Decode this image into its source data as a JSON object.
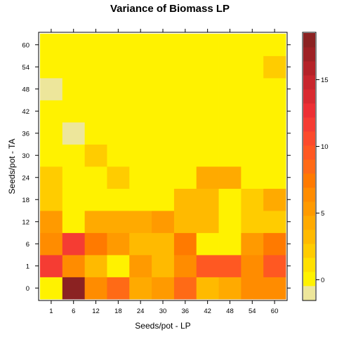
{
  "chart_data": {
    "type": "heatmap",
    "title": "Variance of Biomass LP",
    "xlabel": "Seeds/pot - LP",
    "ylabel": "Seeds/pot - TA",
    "x_categories": [
      "1",
      "6",
      "12",
      "18",
      "24",
      "30",
      "36",
      "42",
      "48",
      "54",
      "60"
    ],
    "y_categories": [
      "0",
      "1",
      "6",
      "12",
      "18",
      "24",
      "30",
      "36",
      "42",
      "48",
      "54",
      "60"
    ],
    "values": [
      [
        0.0,
        18.5,
        6.5,
        9.0,
        4.5,
        5.5,
        9.0,
        3.5,
        4.0,
        6.0,
        6.0
      ],
      [
        12.0,
        6.5,
        3.0,
        0.0,
        5.0,
        3.5,
        6.0,
        10.0,
        10.0,
        6.0,
        10.0
      ],
      [
        6.0,
        12.0,
        7.5,
        5.5,
        3.0,
        3.0,
        7.0,
        0.0,
        0.0,
        5.0,
        7.5
      ],
      [
        5.0,
        0.0,
        4.5,
        4.5,
        4.5,
        5.5,
        3.0,
        3.0,
        0.0,
        2.5,
        2.5
      ],
      [
        2.5,
        0.0,
        0.0,
        0.0,
        0.0,
        0.0,
        3.0,
        3.0,
        0.0,
        2.5,
        4.0
      ],
      [
        2.5,
        0.0,
        0.0,
        2.0,
        0.0,
        0.0,
        0.0,
        4.5,
        4.5,
        0.0,
        0.0
      ],
      [
        0.0,
        0.0,
        2.0,
        0.0,
        0.0,
        0.0,
        0.0,
        0.0,
        0.0,
        0.0,
        0.0
      ],
      [
        0.0,
        -1.0,
        0.0,
        0.0,
        0.0,
        0.0,
        0.0,
        0.0,
        0.0,
        0.0,
        0.0
      ],
      [
        0.0,
        0.0,
        0.0,
        0.0,
        0.0,
        0.0,
        0.0,
        0.0,
        0.0,
        0.0,
        0.0
      ],
      [
        -1.0,
        0.0,
        0.0,
        0.0,
        0.0,
        0.0,
        0.0,
        0.0,
        0.0,
        0.0,
        0.0
      ],
      [
        0.0,
        0.0,
        0.0,
        0.0,
        0.0,
        0.0,
        0.0,
        0.0,
        0.0,
        0.0,
        2.5
      ],
      [
        0.0,
        0.0,
        0.0,
        0.0,
        0.0,
        0.0,
        0.0,
        0.0,
        0.0,
        0.0,
        0.0
      ]
    ],
    "colorbar": {
      "range": [
        -1.5,
        18.5
      ],
      "ticks": [
        0,
        5,
        10,
        15
      ],
      "colors": [
        "#ede69b",
        "#fff200",
        "#ffe000",
        "#ffcc00",
        "#ffba00",
        "#ffaa00",
        "#ff9a00",
        "#ff8c00",
        "#ff7a00",
        "#ff6a16",
        "#ff5822",
        "#fc4a2c",
        "#f53c33",
        "#ed2f34",
        "#d92a30",
        "#c8262d",
        "#b42228",
        "#9e2124",
        "#8b2222"
      ]
    },
    "grid": false
  }
}
